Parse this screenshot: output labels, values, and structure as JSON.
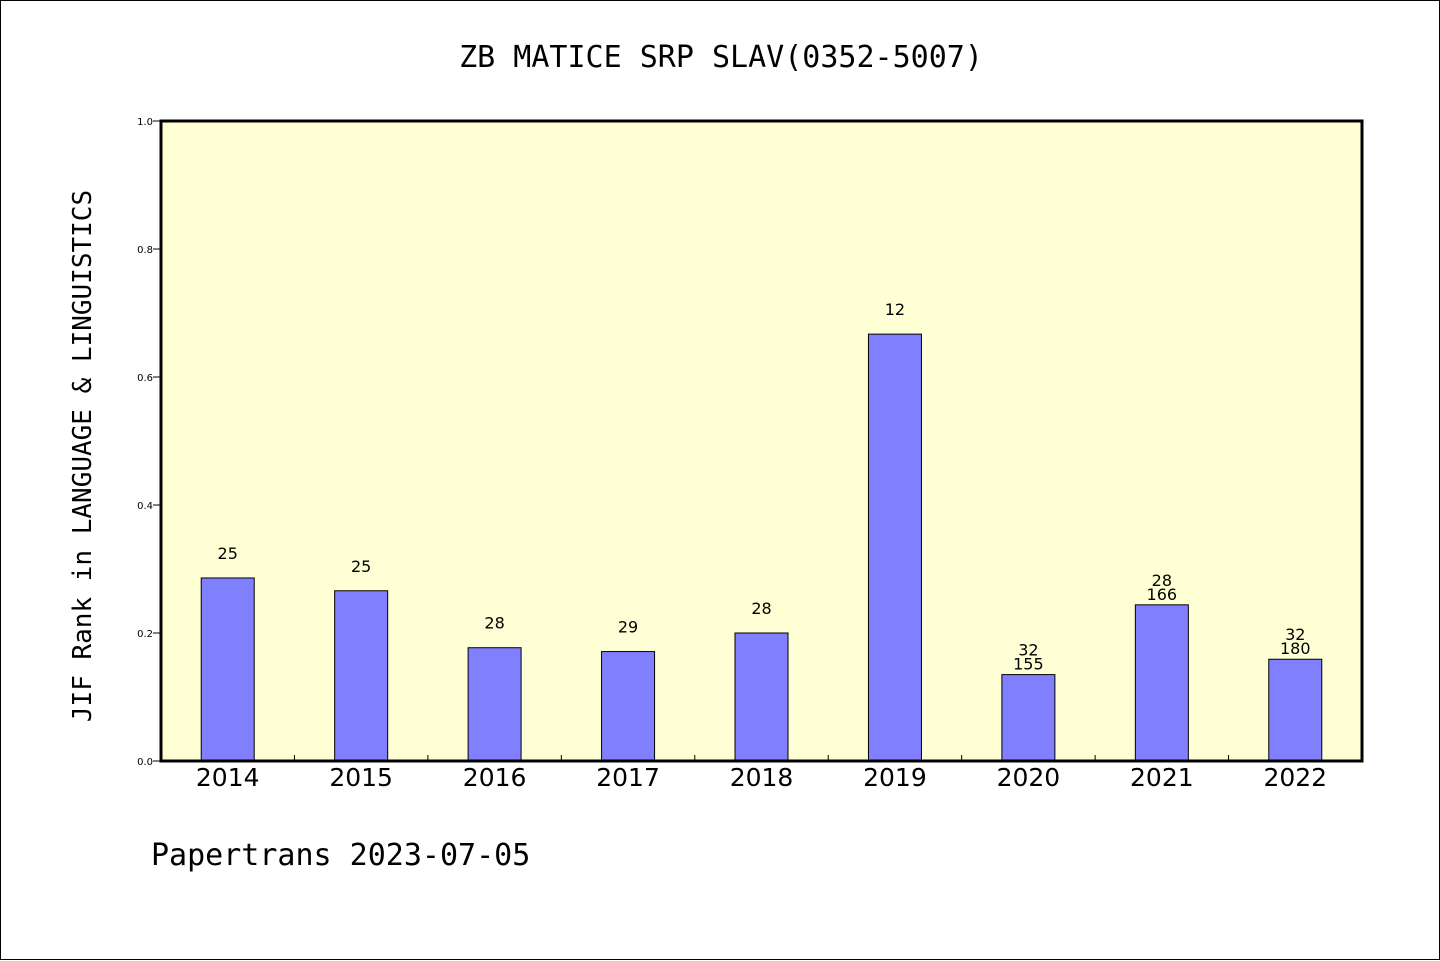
{
  "footer": "Papertrans 2023-07-05",
  "chart_data": {
    "type": "bar",
    "title": "ZB MATICE SRP SLAV(0352-5007)",
    "xlabel": "",
    "ylabel": "JIF Rank in LANGUAGE & LINGUISTICS",
    "ylim": [
      0,
      1.0
    ],
    "yticks": [
      "0.0",
      "0.2",
      "0.4",
      "0.6",
      "0.8",
      "1.0"
    ],
    "grid": false,
    "categories": [
      "2014",
      "2015",
      "2016",
      "2017",
      "2018",
      "2019",
      "2020",
      "2021",
      "2022"
    ],
    "values": [
      0.286,
      0.266,
      0.177,
      0.171,
      0.2,
      0.667,
      0.135,
      0.244,
      0.159
    ],
    "bar_labels": [
      [
        "25"
      ],
      [
        "25"
      ],
      [
        "28"
      ],
      [
        "29"
      ],
      [
        "28"
      ],
      [
        "12"
      ],
      [
        "32",
        "155"
      ],
      [
        "28",
        "166"
      ],
      [
        "32",
        "180"
      ]
    ],
    "colors": {
      "plot_bg": "#ffffd5",
      "bar_fill": "#8080ff",
      "bar_stroke": "#000000"
    }
  }
}
